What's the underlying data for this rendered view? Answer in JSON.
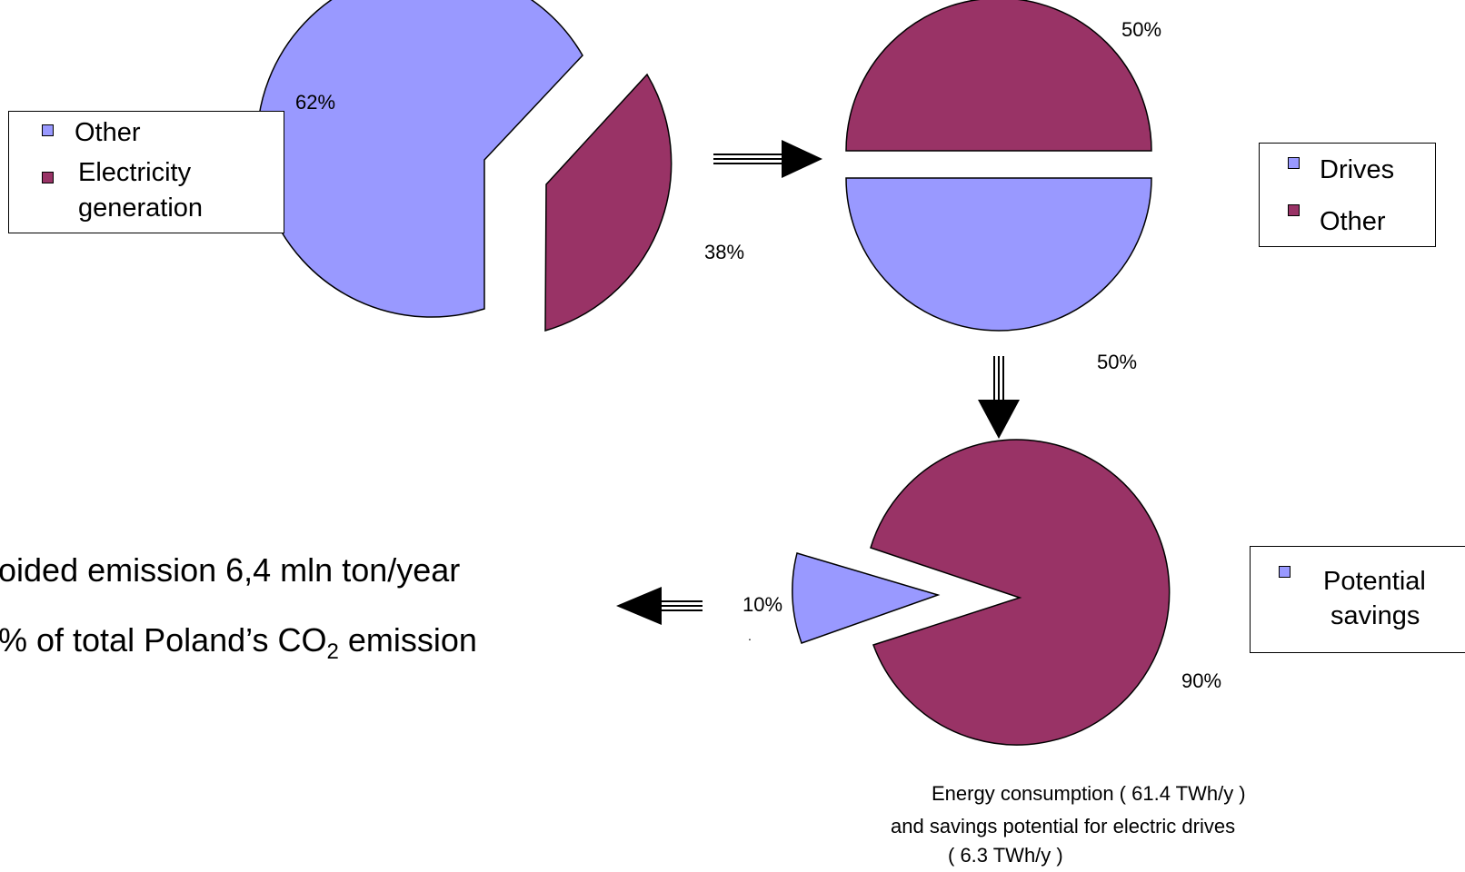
{
  "colors": {
    "other_blue": "#9999ff",
    "maroon": "#993366",
    "outline": "#000000"
  },
  "chart_data": [
    {
      "type": "pie",
      "slices": [
        {
          "label": "Other",
          "value": 62,
          "color": "#9999ff"
        },
        {
          "label": "Electricity generation",
          "value": 38,
          "color": "#993366"
        }
      ],
      "data_labels": [
        "62%",
        "38%"
      ],
      "legend": [
        "Other",
        "Electricity",
        "generation"
      ]
    },
    {
      "type": "pie",
      "slices": [
        {
          "label": "Drives",
          "value": 50,
          "color": "#9999ff"
        },
        {
          "label": "Other",
          "value": 50,
          "color": "#993366"
        }
      ],
      "data_labels": [
        "50%",
        "50%"
      ],
      "legend": [
        "Drives",
        "Other"
      ]
    },
    {
      "type": "pie",
      "slices": [
        {
          "label": "Potential savings",
          "value": 10,
          "color": "#9999ff"
        },
        {
          "label": "",
          "value": 90,
          "color": "#993366"
        }
      ],
      "data_labels": [
        "10%",
        "90%"
      ],
      "legend": [
        "Potential",
        "savings"
      ]
    }
  ],
  "emission": {
    "line1": "oided emission 6,4 mln ton/year",
    "line2_prefix": "% of total Poland’s CO",
    "line2_sub": "2",
    "line2_suffix": " emission"
  },
  "caption": {
    "line1": "Energy consumption ( 61.4 TWh/y )",
    "line2": "and savings potential for electric drives",
    "line3": "( 6.3 TWh/y )"
  },
  "stray_dot": "."
}
